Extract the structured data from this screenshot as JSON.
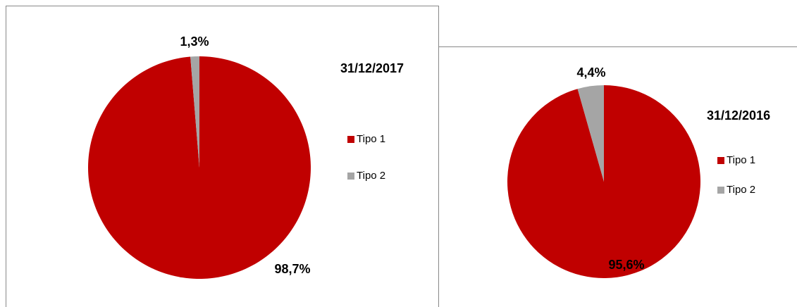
{
  "chart_data": [
    {
      "type": "pie",
      "title": "31/12/2017",
      "categories": [
        "Tipo 1",
        "Tipo 2"
      ],
      "values": [
        98.7,
        1.3
      ],
      "value_labels": [
        "98,7%",
        "1,3%"
      ],
      "colors": [
        "#c00000",
        "#a5a5a5"
      ],
      "legend": "right"
    },
    {
      "type": "pie",
      "title": "31/12/2016",
      "categories": [
        "Tipo 1",
        "Tipo 2"
      ],
      "values": [
        95.6,
        4.4
      ],
      "value_labels": [
        "95,6%",
        "4,4%"
      ],
      "colors": [
        "#c00000",
        "#a5a5a5"
      ],
      "legend": "right"
    }
  ]
}
